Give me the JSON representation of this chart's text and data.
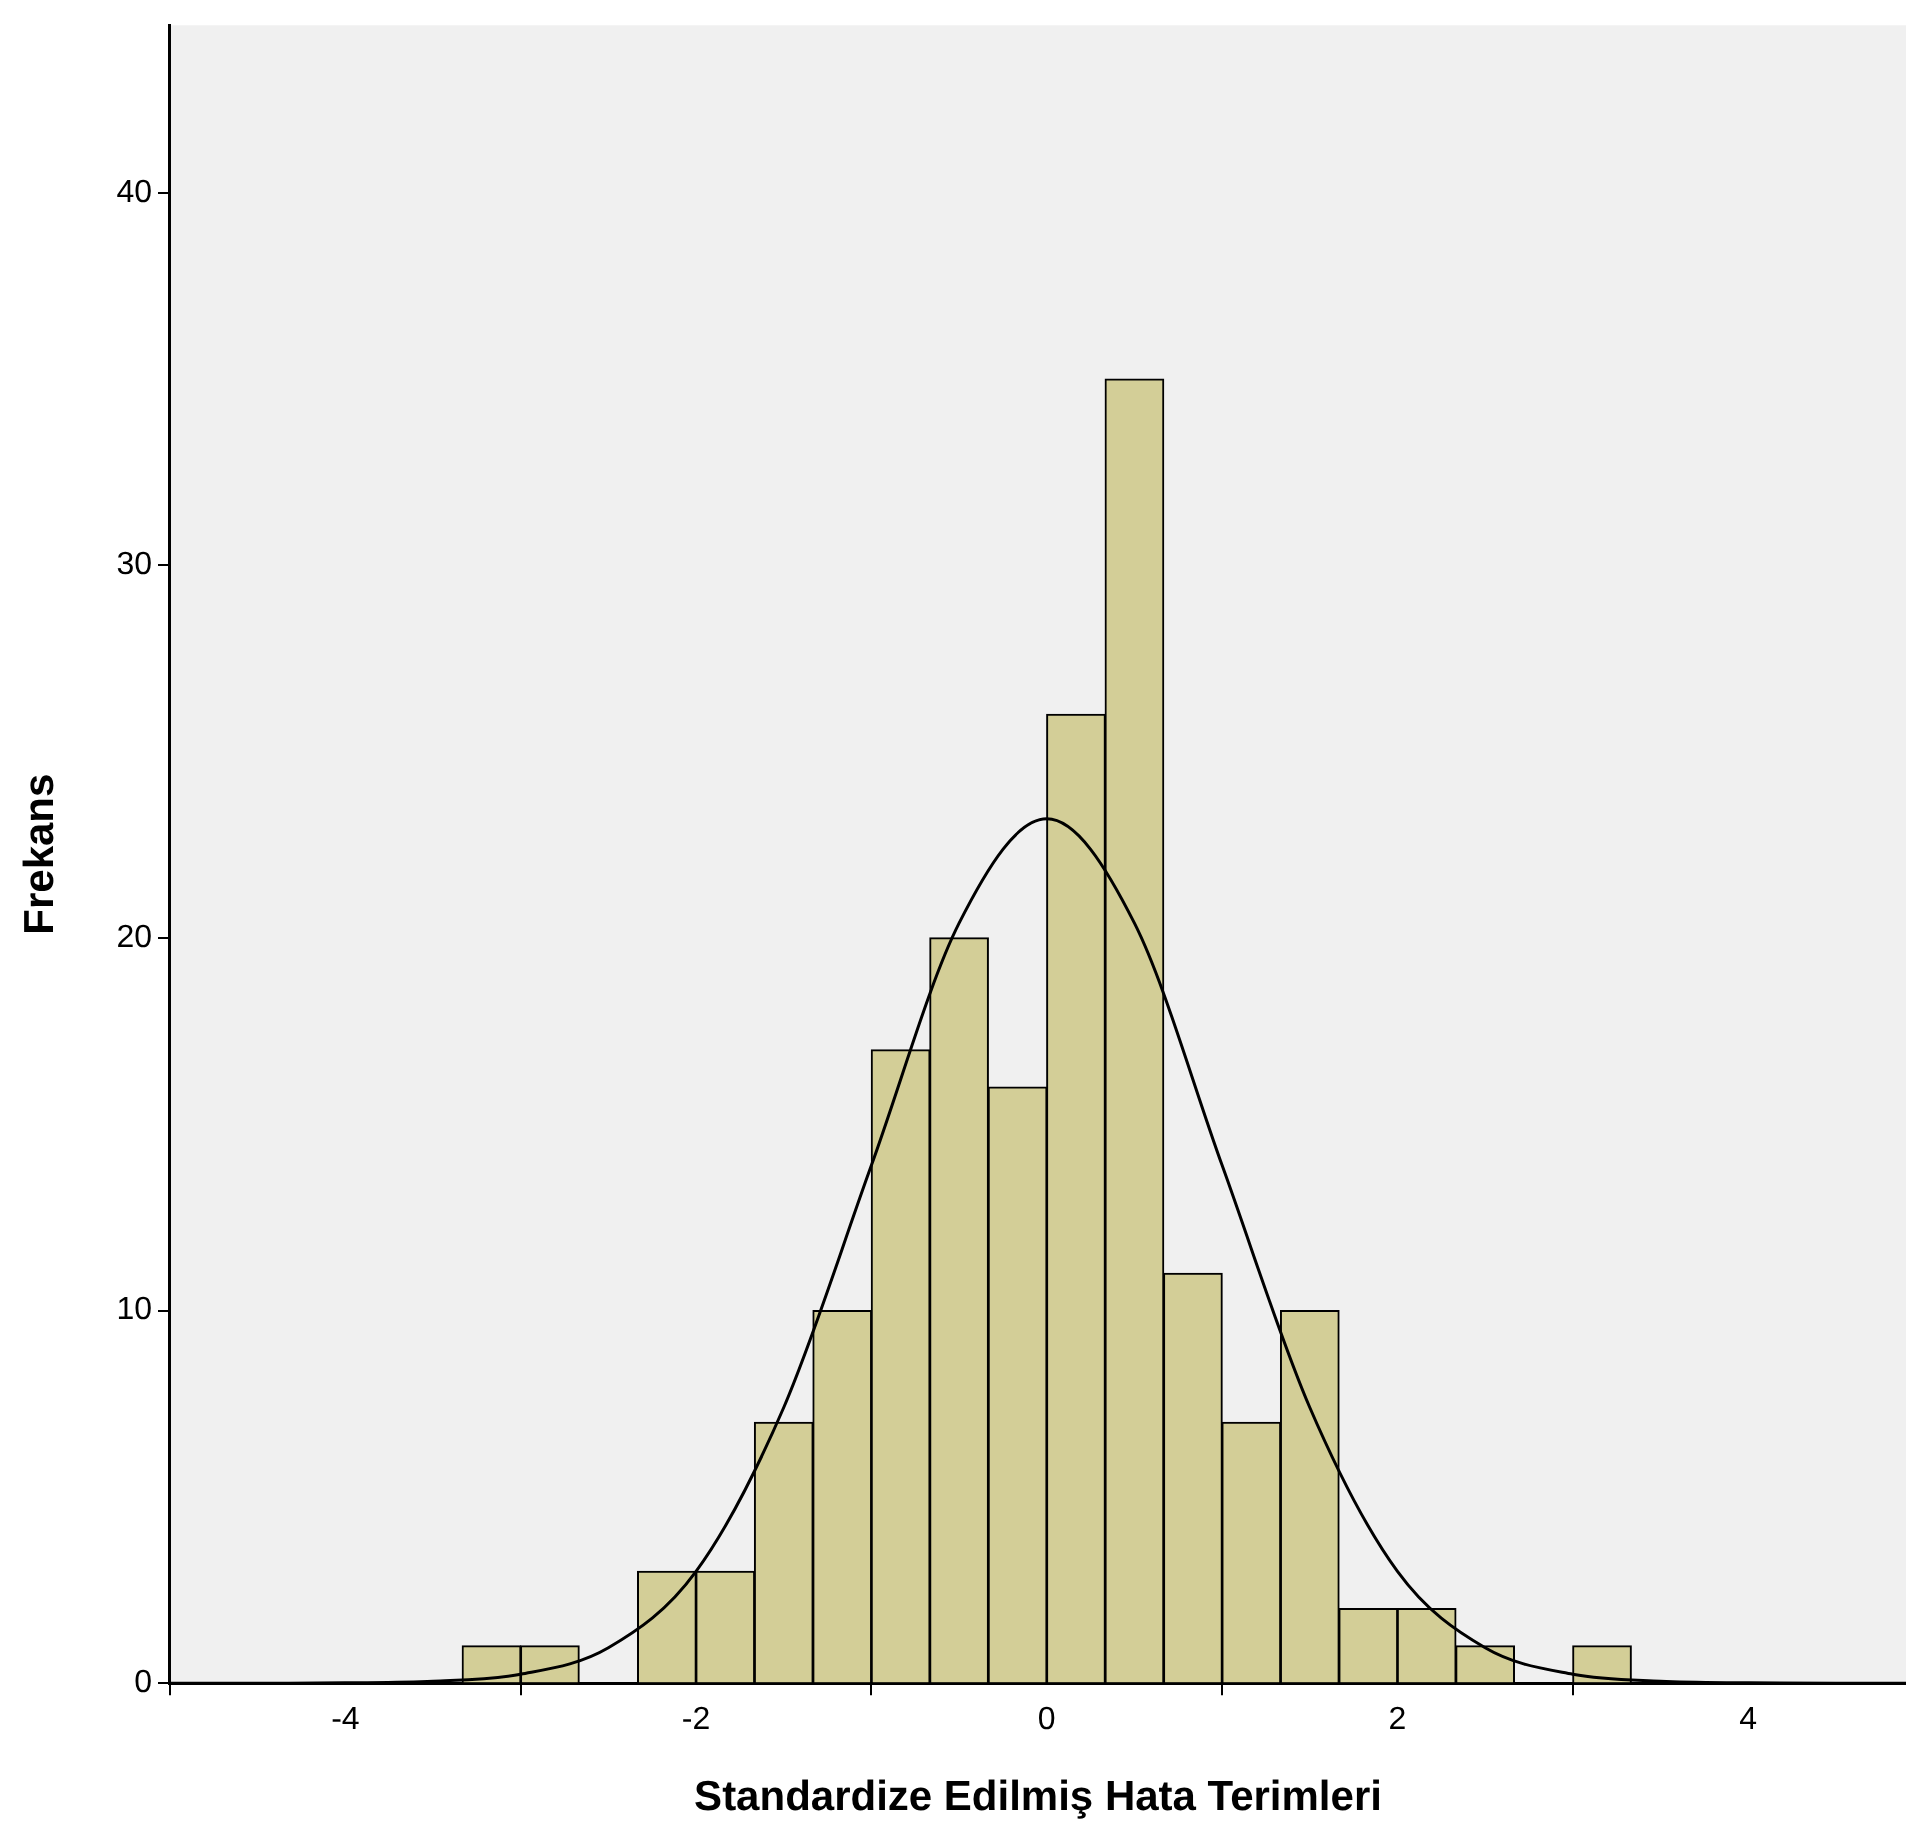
{
  "chart_data": {
    "type": "histogram",
    "xlabel": "Standardize Edilmiş Hata Terimleri",
    "ylabel": "Frekans",
    "bins": [
      -3.333,
      -3,
      -2.667,
      -2.333,
      -2,
      -1.667,
      -1.333,
      -1,
      -0.667,
      -0.333,
      0,
      0.333,
      0.667,
      1,
      1.333,
      1.667,
      2,
      2.333,
      2.667,
      3,
      3.333
    ],
    "values": [
      1,
      1,
      0,
      3,
      3,
      7,
      10,
      17,
      20,
      16,
      26,
      35,
      11,
      7,
      10,
      2,
      2,
      1,
      0,
      1
    ],
    "color": "#d3ce97",
    "series": [
      {
        "type": "line",
        "color": "#000000",
        "x": [
          -5,
          -4.5,
          -4,
          -3.5,
          -3,
          -2.5,
          -2,
          -1.5,
          -1,
          -0.5,
          0,
          0.5,
          1,
          1.5,
          2,
          2.5,
          3,
          3.5,
          4,
          4.5,
          4.9
        ],
        "values": [
          0,
          0,
          0.01,
          0.05,
          0.24,
          0.95,
          3,
          7.4,
          13.9,
          20.4,
          23.2,
          20.4,
          13.9,
          7.4,
          3,
          0.95,
          0.24,
          0.05,
          0.01,
          0,
          0
        ]
      }
    ],
    "xlim": [
      -5,
      4.9
    ],
    "ylim": [
      0,
      44.5
    ],
    "xticks": [
      -4,
      -2,
      0,
      2,
      4
    ],
    "yticks": [
      0,
      10,
      20,
      30,
      40
    ],
    "grid": false,
    "legend": false,
    "marker": "none"
  }
}
